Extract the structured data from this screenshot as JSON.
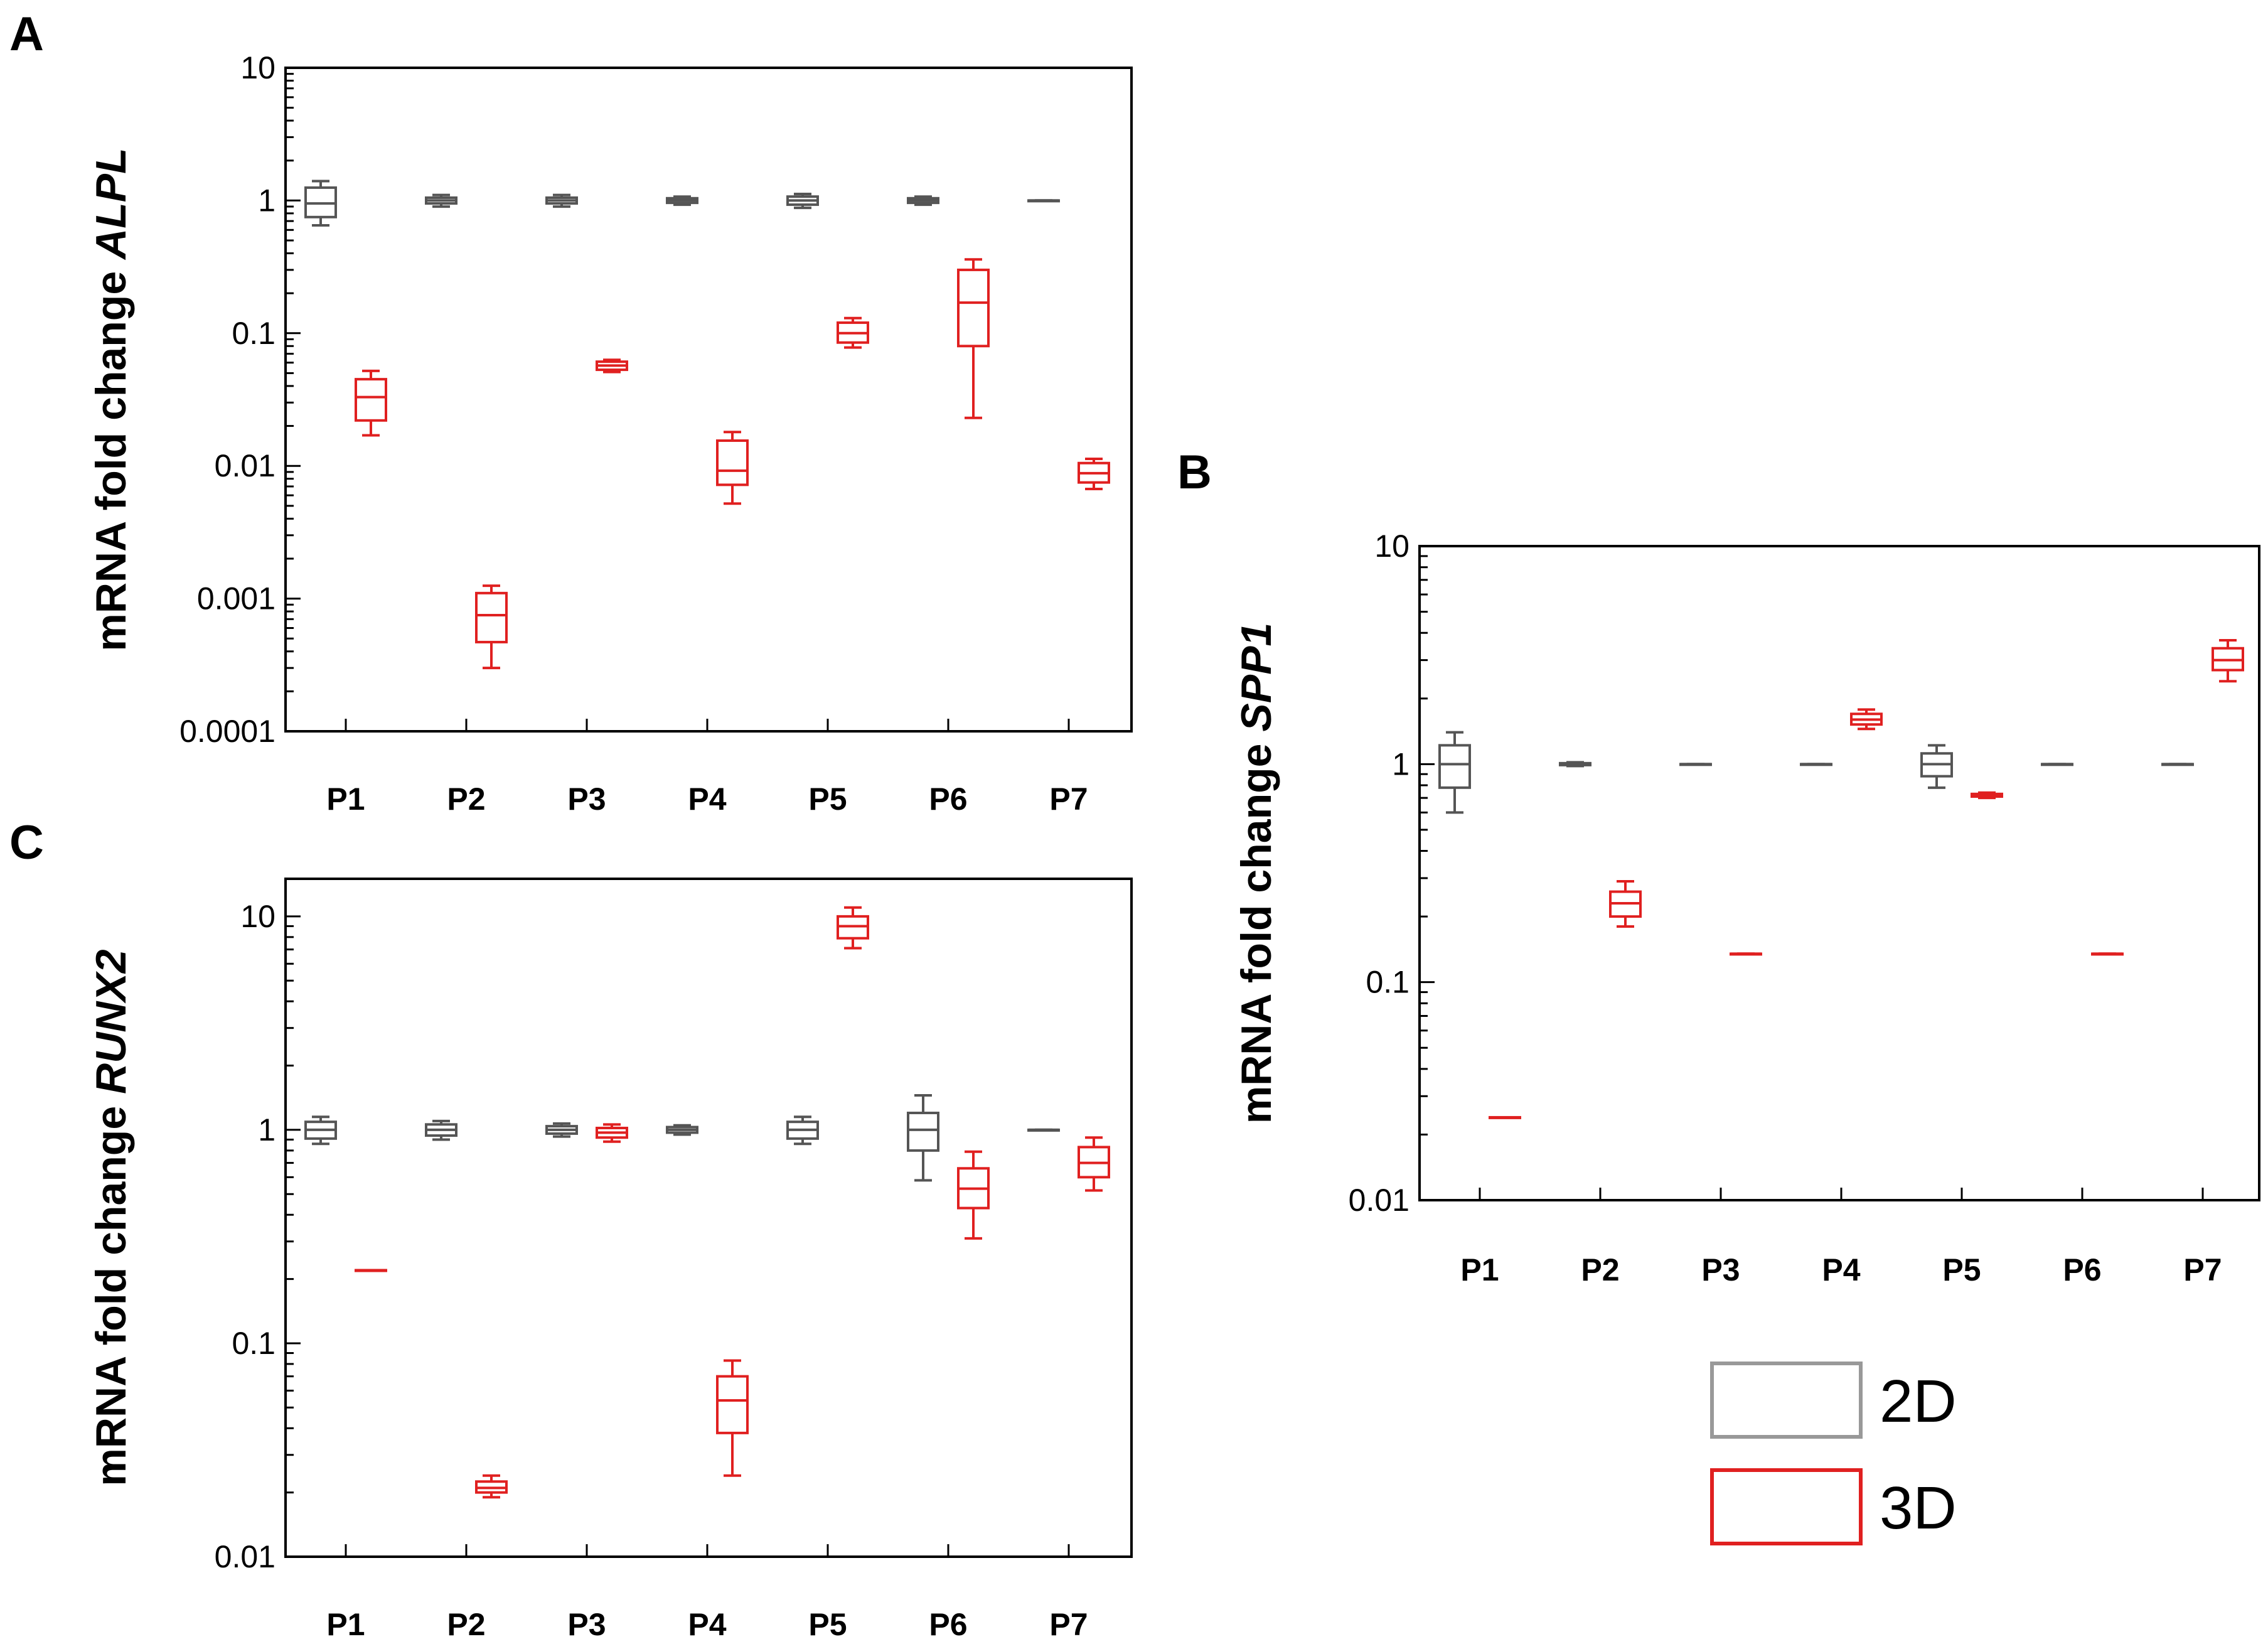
{
  "legend": {
    "entries": [
      {
        "label": "2D",
        "color": "#999999"
      },
      {
        "label": "3D",
        "color": "#e02020"
      }
    ]
  },
  "colors": {
    "group_2D": "#555555",
    "group_3D": "#e02020",
    "axis": "#000000"
  },
  "chart_data": [
    {
      "panel": "A",
      "type": "box",
      "ylabel": "mRNA fold change ",
      "gene": "ALPL",
      "yscale": "log",
      "ylim": [
        0.0001,
        10
      ],
      "yticks": [
        {
          "value": 10,
          "label": "10"
        },
        {
          "value": 1,
          "label": "1"
        },
        {
          "value": 0.1,
          "label": "0.1"
        },
        {
          "value": 0.01,
          "label": "0.01"
        },
        {
          "value": 0.001,
          "label": "0.001"
        },
        {
          "value": 0.0001,
          "label": "0.0001"
        }
      ],
      "categories": [
        "P1",
        "P2",
        "P3",
        "P4",
        "P5",
        "P6",
        "P7"
      ],
      "series": [
        {
          "name": "2D",
          "boxes": [
            {
              "min": 0.65,
              "q1": 0.75,
              "median": 0.95,
              "q3": 1.25,
              "max": 1.4
            },
            {
              "min": 0.9,
              "q1": 0.95,
              "median": 1.0,
              "q3": 1.05,
              "max": 1.1
            },
            {
              "min": 0.9,
              "q1": 0.95,
              "median": 1.0,
              "q3": 1.05,
              "max": 1.1
            },
            {
              "min": 0.93,
              "q1": 0.96,
              "median": 1.0,
              "q3": 1.04,
              "max": 1.07
            },
            {
              "min": 0.88,
              "q1": 0.93,
              "median": 1.0,
              "q3": 1.07,
              "max": 1.12
            },
            {
              "min": 0.93,
              "q1": 0.96,
              "median": 1.0,
              "q3": 1.04,
              "max": 1.07
            },
            {
              "min": 1.0,
              "q1": 1.0,
              "median": 1.0,
              "q3": 1.0,
              "max": 1.0
            }
          ]
        },
        {
          "name": "3D",
          "boxes": [
            {
              "min": 0.017,
              "q1": 0.022,
              "median": 0.033,
              "q3": 0.045,
              "max": 0.052
            },
            {
              "min": 0.0003,
              "q1": 0.00047,
              "median": 0.00075,
              "q3": 0.0011,
              "max": 0.00125
            },
            {
              "min": 0.051,
              "q1": 0.053,
              "median": 0.057,
              "q3": 0.061,
              "max": 0.063
            },
            {
              "min": 0.0052,
              "q1": 0.0072,
              "median": 0.0092,
              "q3": 0.0155,
              "max": 0.018
            },
            {
              "min": 0.078,
              "q1": 0.085,
              "median": 0.1,
              "q3": 0.12,
              "max": 0.13
            },
            {
              "min": 0.023,
              "q1": 0.08,
              "median": 0.17,
              "q3": 0.3,
              "max": 0.36
            },
            {
              "min": 0.0067,
              "q1": 0.0075,
              "median": 0.0088,
              "q3": 0.0105,
              "max": 0.0113
            }
          ]
        }
      ]
    },
    {
      "panel": "B",
      "type": "box",
      "ylabel": "mRNA fold change ",
      "gene": "SPP1",
      "yscale": "log",
      "ylim": [
        0.01,
        10
      ],
      "yticks": [
        {
          "value": 10,
          "label": "10"
        },
        {
          "value": 1,
          "label": "1"
        },
        {
          "value": 0.1,
          "label": "0.1"
        },
        {
          "value": 0.01,
          "label": "0.01"
        }
      ],
      "categories": [
        "P1",
        "P2",
        "P3",
        "P4",
        "P5",
        "P6",
        "P7"
      ],
      "series": [
        {
          "name": "2D",
          "boxes": [
            {
              "min": 0.6,
              "q1": 0.78,
              "median": 1.0,
              "q3": 1.22,
              "max": 1.4
            },
            {
              "min": 0.98,
              "q1": 0.99,
              "median": 1.0,
              "q3": 1.01,
              "max": 1.02
            },
            {
              "min": 1.0,
              "q1": 1.0,
              "median": 1.0,
              "q3": 1.0,
              "max": 1.0
            },
            {
              "min": 1.0,
              "q1": 1.0,
              "median": 1.0,
              "q3": 1.0,
              "max": 1.0
            },
            {
              "min": 0.78,
              "q1": 0.88,
              "median": 1.0,
              "q3": 1.12,
              "max": 1.22
            },
            {
              "min": 1.0,
              "q1": 1.0,
              "median": 1.0,
              "q3": 1.0,
              "max": 1.0
            },
            {
              "min": 1.0,
              "q1": 1.0,
              "median": 1.0,
              "q3": 1.0,
              "max": 1.0
            }
          ]
        },
        {
          "name": "3D",
          "boxes": [
            {
              "min": 0.024,
              "q1": 0.024,
              "median": 0.024,
              "q3": 0.024,
              "max": 0.024
            },
            {
              "min": 0.18,
              "q1": 0.2,
              "median": 0.23,
              "q3": 0.26,
              "max": 0.29
            },
            {
              "min": 0.135,
              "q1": 0.135,
              "median": 0.135,
              "q3": 0.135,
              "max": 0.135
            },
            {
              "min": 1.45,
              "q1": 1.52,
              "median": 1.6,
              "q3": 1.7,
              "max": 1.78
            },
            {
              "min": 0.7,
              "q1": 0.71,
              "median": 0.72,
              "q3": 0.73,
              "max": 0.74
            },
            {
              "min": 0.135,
              "q1": 0.135,
              "median": 0.135,
              "q3": 0.135,
              "max": 0.135
            },
            {
              "min": 2.4,
              "q1": 2.7,
              "median": 3.0,
              "q3": 3.4,
              "max": 3.7
            }
          ]
        }
      ]
    },
    {
      "panel": "C",
      "type": "box",
      "ylabel": "mRNA fold change ",
      "gene": "RUNX2",
      "yscale": "log",
      "ylim": [
        0.01,
        15
      ],
      "yticks": [
        {
          "value": 10,
          "label": "10"
        },
        {
          "value": 1,
          "label": "1"
        },
        {
          "value": 0.1,
          "label": "0.1"
        },
        {
          "value": 0.01,
          "label": "0.01"
        }
      ],
      "categories": [
        "P1",
        "P2",
        "P3",
        "P4",
        "P5",
        "P6",
        "P7"
      ],
      "series": [
        {
          "name": "2D",
          "boxes": [
            {
              "min": 0.86,
              "q1": 0.91,
              "median": 1.0,
              "q3": 1.09,
              "max": 1.15
            },
            {
              "min": 0.9,
              "q1": 0.94,
              "median": 1.0,
              "q3": 1.06,
              "max": 1.1
            },
            {
              "min": 0.93,
              "q1": 0.96,
              "median": 1.0,
              "q3": 1.04,
              "max": 1.07
            },
            {
              "min": 0.95,
              "q1": 0.97,
              "median": 1.0,
              "q3": 1.03,
              "max": 1.05
            },
            {
              "min": 0.86,
              "q1": 0.91,
              "median": 1.0,
              "q3": 1.09,
              "max": 1.15
            },
            {
              "min": 0.58,
              "q1": 0.8,
              "median": 1.0,
              "q3": 1.2,
              "max": 1.45
            },
            {
              "min": 1.0,
              "q1": 1.0,
              "median": 1.0,
              "q3": 1.0,
              "max": 1.0
            }
          ]
        },
        {
          "name": "3D",
          "boxes": [
            {
              "min": 0.22,
              "q1": 0.22,
              "median": 0.22,
              "q3": 0.22,
              "max": 0.22
            },
            {
              "min": 0.019,
              "q1": 0.02,
              "median": 0.021,
              "q3": 0.0225,
              "max": 0.024
            },
            {
              "min": 0.88,
              "q1": 0.92,
              "median": 0.97,
              "q3": 1.02,
              "max": 1.06
            },
            {
              "min": 0.024,
              "q1": 0.038,
              "median": 0.054,
              "q3": 0.07,
              "max": 0.083
            },
            {
              "min": 7.1,
              "q1": 7.9,
              "median": 9.0,
              "q3": 10.0,
              "max": 11.0
            },
            {
              "min": 0.31,
              "q1": 0.43,
              "median": 0.53,
              "q3": 0.66,
              "max": 0.79
            },
            {
              "min": 0.52,
              "q1": 0.6,
              "median": 0.7,
              "q3": 0.83,
              "max": 0.92
            }
          ]
        }
      ]
    }
  ]
}
